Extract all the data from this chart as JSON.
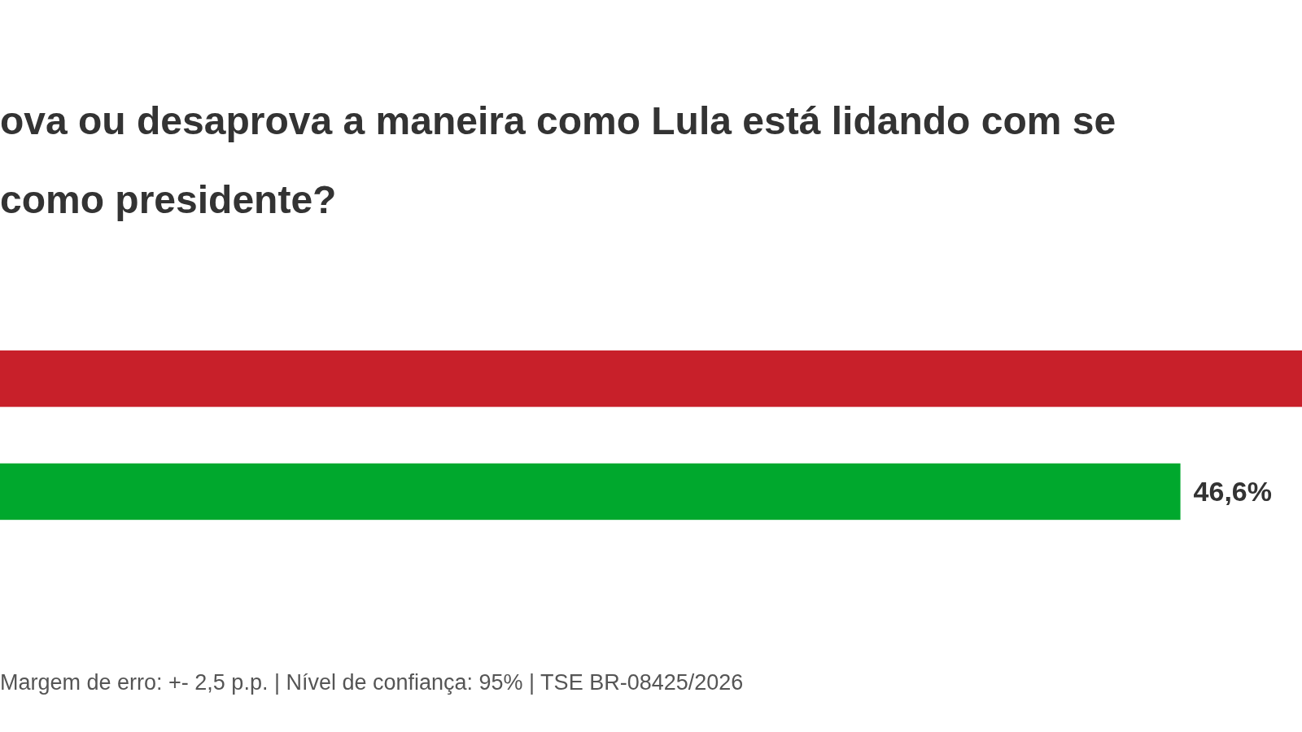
{
  "chart_data": {
    "type": "bar",
    "orientation": "horizontal",
    "title": "ova ou desaprova a maneira como Lula está lidando com se\ncomo presidente?",
    "categories": [
      null,
      null
    ],
    "values": [
      51.4,
      46.6
    ],
    "colors": [
      "#c8202a",
      "#00a82d"
    ],
    "value_labels": [
      null,
      "46,6%"
    ],
    "xlim": [
      0,
      51.4
    ],
    "annotations": [
      "Margem de erro: +- 2,5 p.p. | Nível de confiança: 95% | TSE BR-08425/2026"
    ]
  }
}
